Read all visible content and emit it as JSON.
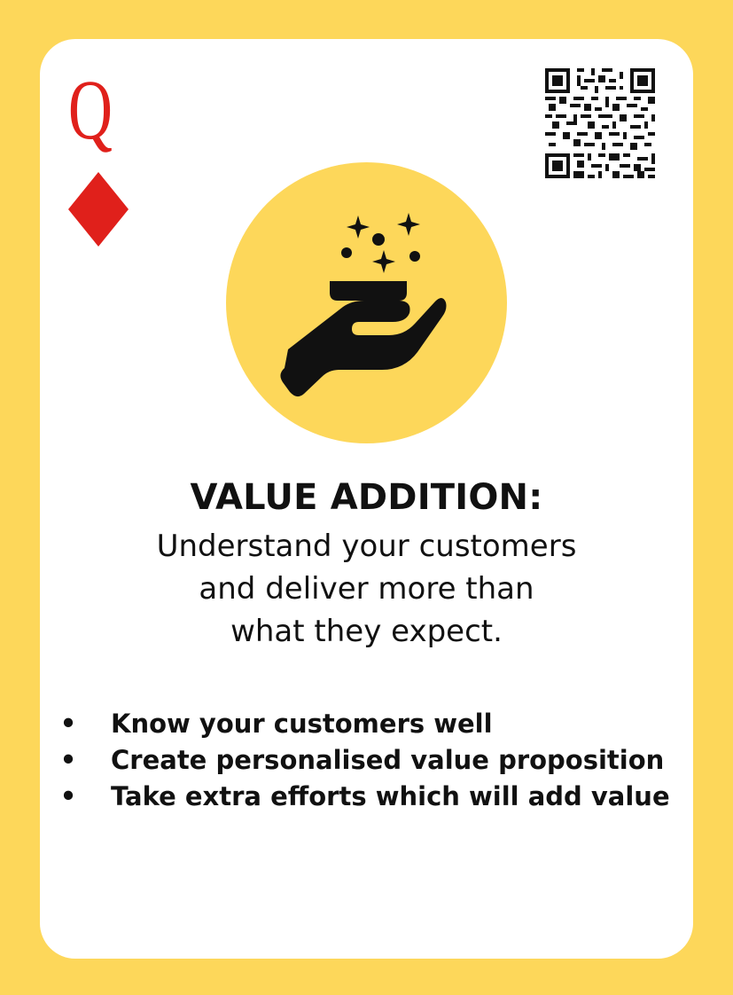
{
  "card": {
    "rank": "Q",
    "suit": "diamond",
    "suit_color": "#E0201B",
    "background_color": "#FDD75A",
    "icon": "hand-offering-sparkles-icon",
    "qr_icon": "qr-code-icon"
  },
  "heading": "VALUE ADDITION:",
  "subtitle_lines": [
    "Understand your customers",
    "and deliver more than",
    "what they expect."
  ],
  "bullets": [
    "Know your customers well",
    "Create personalised value proposition",
    "Take extra efforts which will add value"
  ],
  "bullet_symbol": "•"
}
